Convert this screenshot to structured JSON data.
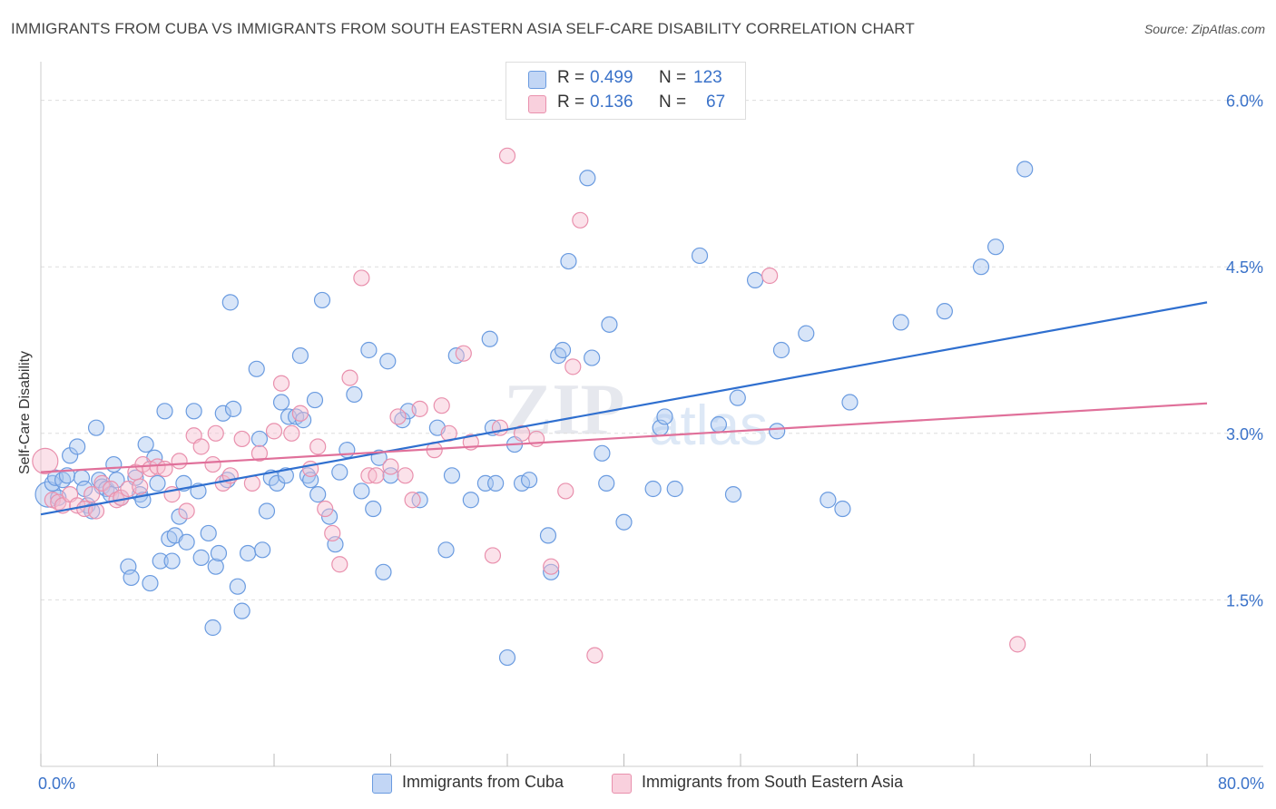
{
  "title": "IMMIGRANTS FROM CUBA VS IMMIGRANTS FROM SOUTH EASTERN ASIA SELF-CARE DISABILITY CORRELATION CHART",
  "source": "Source: ZipAtlas.com",
  "watermark": {
    "zip": "ZIP",
    "atlas": "atlas"
  },
  "legend_top": {
    "cuba": {
      "r_label": "R =",
      "r_value": "0.499",
      "n_label": "N =",
      "n_value": "123"
    },
    "sea": {
      "r_label": "R =",
      "r_value": "0.136",
      "n_label": "N =",
      "n_value": "67"
    }
  },
  "colors": {
    "cuba_fill": "#a9c6f0",
    "cuba_stroke": "#6a9be0",
    "cuba_line": "#2f6fcf",
    "sea_fill": "#f6bfd0",
    "sea_stroke": "#e990ad",
    "sea_line": "#e0709a",
    "axis_label": "#3a72c9",
    "grid": "#dddddd"
  },
  "chart_data": {
    "type": "scatter",
    "title": "IMMIGRANTS FROM CUBA VS IMMIGRANTS FROM SOUTH EASTERN ASIA SELF-CARE DISABILITY CORRELATION CHART",
    "xlabel": "",
    "ylabel": "Self-Care Disability",
    "xlim": [
      0,
      80
    ],
    "ylim": [
      0,
      6.25
    ],
    "x_tick_labels": [
      {
        "value": 0,
        "label": "0.0%"
      },
      {
        "value": 80,
        "label": "80.0%"
      }
    ],
    "y_ticks": [
      {
        "value": 1.5,
        "label": "1.5%"
      },
      {
        "value": 3.0,
        "label": "3.0%"
      },
      {
        "value": 4.5,
        "label": "4.5%"
      },
      {
        "value": 6.0,
        "label": "6.0%"
      }
    ],
    "grid": true,
    "legend_position": "bottom",
    "series": [
      {
        "name": "Immigrants from Cuba",
        "color": "#6a9be0",
        "trend": {
          "x": [
            0,
            80
          ],
          "y": [
            2.27,
            4.18
          ]
        },
        "points": [
          [
            0.5,
            2.45
          ],
          [
            0.8,
            2.55
          ],
          [
            1.0,
            2.6
          ],
          [
            1.2,
            2.42
          ],
          [
            1.5,
            2.58
          ],
          [
            1.8,
            2.62
          ],
          [
            2.0,
            2.8
          ],
          [
            2.5,
            2.88
          ],
          [
            2.8,
            2.6
          ],
          [
            3.0,
            2.5
          ],
          [
            3.2,
            2.35
          ],
          [
            3.5,
            2.3
          ],
          [
            3.8,
            3.05
          ],
          [
            4.0,
            2.58
          ],
          [
            4.2,
            2.52
          ],
          [
            4.5,
            2.5
          ],
          [
            4.8,
            2.45
          ],
          [
            5.0,
            2.72
          ],
          [
            5.2,
            2.58
          ],
          [
            5.5,
            2.42
          ],
          [
            6.0,
            1.8
          ],
          [
            6.2,
            1.7
          ],
          [
            6.5,
            2.6
          ],
          [
            6.8,
            2.45
          ],
          [
            7.0,
            2.4
          ],
          [
            7.2,
            2.9
          ],
          [
            7.5,
            1.65
          ],
          [
            7.8,
            2.78
          ],
          [
            8.0,
            2.55
          ],
          [
            8.2,
            1.85
          ],
          [
            8.5,
            3.2
          ],
          [
            8.8,
            2.05
          ],
          [
            9.0,
            1.85
          ],
          [
            9.2,
            2.08
          ],
          [
            9.5,
            2.25
          ],
          [
            9.8,
            2.55
          ],
          [
            10.0,
            2.02
          ],
          [
            10.5,
            3.2
          ],
          [
            10.8,
            2.48
          ],
          [
            11.0,
            1.88
          ],
          [
            11.5,
            2.1
          ],
          [
            11.8,
            1.25
          ],
          [
            12.0,
            1.8
          ],
          [
            12.2,
            1.92
          ],
          [
            12.5,
            3.18
          ],
          [
            12.8,
            2.58
          ],
          [
            13.0,
            4.18
          ],
          [
            13.2,
            3.22
          ],
          [
            13.5,
            1.62
          ],
          [
            13.8,
            1.4
          ],
          [
            14.2,
            1.92
          ],
          [
            14.8,
            3.58
          ],
          [
            15.0,
            2.95
          ],
          [
            15.2,
            1.95
          ],
          [
            15.5,
            2.3
          ],
          [
            15.8,
            2.6
          ],
          [
            16.2,
            2.55
          ],
          [
            16.5,
            3.28
          ],
          [
            16.8,
            2.62
          ],
          [
            17.0,
            3.15
          ],
          [
            17.5,
            3.15
          ],
          [
            17.8,
            3.7
          ],
          [
            18.0,
            3.12
          ],
          [
            18.3,
            2.62
          ],
          [
            18.5,
            2.58
          ],
          [
            18.8,
            3.3
          ],
          [
            19.0,
            2.45
          ],
          [
            19.3,
            4.2
          ],
          [
            19.8,
            2.25
          ],
          [
            20.2,
            2.0
          ],
          [
            20.5,
            2.65
          ],
          [
            21.0,
            2.85
          ],
          [
            21.5,
            3.35
          ],
          [
            22.0,
            2.48
          ],
          [
            22.5,
            3.75
          ],
          [
            22.8,
            2.32
          ],
          [
            23.2,
            2.78
          ],
          [
            23.5,
            1.75
          ],
          [
            23.8,
            3.65
          ],
          [
            24.0,
            2.62
          ],
          [
            24.8,
            3.12
          ],
          [
            25.2,
            3.2
          ],
          [
            26.0,
            2.4
          ],
          [
            27.2,
            3.05
          ],
          [
            27.8,
            1.95
          ],
          [
            28.2,
            2.62
          ],
          [
            28.5,
            3.7
          ],
          [
            29.5,
            2.4
          ],
          [
            30.5,
            2.55
          ],
          [
            30.8,
            3.85
          ],
          [
            31.0,
            3.05
          ],
          [
            31.2,
            2.55
          ],
          [
            32.0,
            0.98
          ],
          [
            32.5,
            2.9
          ],
          [
            33.0,
            2.55
          ],
          [
            33.5,
            2.58
          ],
          [
            34.8,
            2.08
          ],
          [
            35.0,
            1.75
          ],
          [
            35.5,
            3.7
          ],
          [
            35.8,
            3.75
          ],
          [
            36.2,
            4.55
          ],
          [
            37.5,
            5.3
          ],
          [
            37.8,
            3.68
          ],
          [
            38.5,
            2.82
          ],
          [
            38.8,
            2.55
          ],
          [
            39.0,
            3.98
          ],
          [
            40.0,
            2.2
          ],
          [
            42.0,
            2.5
          ],
          [
            42.5,
            3.05
          ],
          [
            42.8,
            3.15
          ],
          [
            43.5,
            2.5
          ],
          [
            45.2,
            4.6
          ],
          [
            46.5,
            3.08
          ],
          [
            47.5,
            2.45
          ],
          [
            47.8,
            3.32
          ],
          [
            49.0,
            4.38
          ],
          [
            50.5,
            3.02
          ],
          [
            50.8,
            3.75
          ],
          [
            52.5,
            3.9
          ],
          [
            54.0,
            2.4
          ],
          [
            55.0,
            2.32
          ],
          [
            55.5,
            3.28
          ],
          [
            59.0,
            4.0
          ],
          [
            62.0,
            4.1
          ],
          [
            64.5,
            4.5
          ],
          [
            65.5,
            4.68
          ],
          [
            67.5,
            5.38
          ]
        ]
      },
      {
        "name": "Immigrants from South Eastern Asia",
        "color": "#e990ad",
        "trend": {
          "x": [
            0,
            80
          ],
          "y": [
            2.65,
            3.27
          ]
        },
        "points": [
          [
            0.3,
            2.75
          ],
          [
            0.8,
            2.4
          ],
          [
            1.2,
            2.38
          ],
          [
            1.5,
            2.35
          ],
          [
            2.0,
            2.45
          ],
          [
            2.5,
            2.35
          ],
          [
            3.0,
            2.32
          ],
          [
            3.5,
            2.45
          ],
          [
            3.8,
            2.3
          ],
          [
            4.2,
            2.55
          ],
          [
            4.8,
            2.5
          ],
          [
            5.2,
            2.4
          ],
          [
            5.5,
            2.42
          ],
          [
            6.0,
            2.5
          ],
          [
            6.5,
            2.65
          ],
          [
            6.8,
            2.52
          ],
          [
            7.0,
            2.72
          ],
          [
            7.5,
            2.68
          ],
          [
            8.0,
            2.7
          ],
          [
            8.5,
            2.68
          ],
          [
            9.0,
            2.45
          ],
          [
            9.5,
            2.75
          ],
          [
            10.0,
            2.3
          ],
          [
            10.5,
            2.98
          ],
          [
            11.0,
            2.88
          ],
          [
            11.8,
            2.72
          ],
          [
            12.0,
            3.0
          ],
          [
            12.5,
            2.55
          ],
          [
            13.0,
            2.62
          ],
          [
            13.8,
            2.95
          ],
          [
            14.5,
            2.55
          ],
          [
            15.0,
            2.82
          ],
          [
            16.0,
            3.02
          ],
          [
            16.5,
            3.45
          ],
          [
            17.2,
            3.0
          ],
          [
            17.8,
            3.18
          ],
          [
            18.5,
            2.68
          ],
          [
            19.0,
            2.88
          ],
          [
            19.5,
            2.32
          ],
          [
            20.0,
            2.1
          ],
          [
            20.5,
            1.82
          ],
          [
            21.2,
            3.5
          ],
          [
            22.0,
            4.4
          ],
          [
            22.5,
            2.62
          ],
          [
            23.0,
            2.62
          ],
          [
            24.0,
            2.7
          ],
          [
            24.5,
            3.15
          ],
          [
            25.0,
            2.62
          ],
          [
            25.5,
            2.4
          ],
          [
            26.0,
            3.22
          ],
          [
            27.0,
            2.85
          ],
          [
            27.5,
            3.25
          ],
          [
            28.0,
            3.0
          ],
          [
            29.0,
            3.72
          ],
          [
            29.5,
            2.92
          ],
          [
            31.0,
            1.9
          ],
          [
            31.5,
            3.05
          ],
          [
            32.0,
            5.5
          ],
          [
            33.0,
            3.0
          ],
          [
            34.0,
            2.95
          ],
          [
            35.0,
            1.8
          ],
          [
            36.0,
            2.48
          ],
          [
            36.5,
            3.6
          ],
          [
            37.0,
            4.92
          ],
          [
            38.0,
            1.0
          ],
          [
            50.0,
            4.42
          ],
          [
            67.0,
            1.1
          ]
        ]
      }
    ]
  },
  "legend_bottom": [
    {
      "label": "Immigrants from Cuba"
    },
    {
      "label": "Immigrants from South Eastern Asia"
    }
  ]
}
